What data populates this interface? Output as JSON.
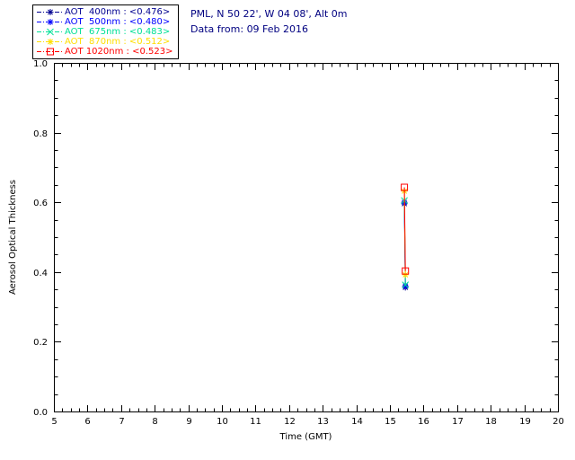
{
  "header": {
    "line1": "PML, N 50 22', W 04 08', Alt 0m",
    "line2": "Data from: 09 Feb 2016",
    "color": "#000080"
  },
  "legend": {
    "border_color": "#000000"
  },
  "chart_data": {
    "type": "line",
    "title": "",
    "xlabel": "Time (GMT)",
    "ylabel": "Aerosol Optical Thickness",
    "xlim": [
      5,
      20
    ],
    "ylim": [
      0.0,
      1.0
    ],
    "xticks": [
      5,
      6,
      7,
      8,
      9,
      10,
      11,
      12,
      13,
      14,
      15,
      16,
      17,
      18,
      19,
      20
    ],
    "xticklabels": [
      "5",
      "6",
      "7",
      "8",
      "9",
      "10",
      "11",
      "12",
      "13",
      "14",
      "15",
      "16",
      "17",
      "18",
      "19",
      "20"
    ],
    "yticks": [
      0.0,
      0.2,
      0.4,
      0.6,
      0.8,
      1.0
    ],
    "yticklabels": [
      "0.0",
      "0.2",
      "0.4",
      "0.6",
      "0.8",
      "1.0"
    ],
    "grid": false,
    "legend_position": "top-left",
    "axis_color": "#000000",
    "series": [
      {
        "name": "AOT 400nm",
        "label": "AOT  400nm : <0.476>",
        "mean": 0.476,
        "color": "#000090",
        "marker": "asterisk",
        "x": [
          15.43,
          15.46
        ],
        "y": [
          0.596,
          0.356
        ]
      },
      {
        "name": "AOT 500nm",
        "label": "AOT  500nm : <0.480>",
        "mean": 0.48,
        "color": "#0000FF",
        "marker": "asterisk",
        "x": [
          15.43,
          15.46
        ],
        "y": [
          0.6,
          0.36
        ]
      },
      {
        "name": "AOT 675nm",
        "label": "AOT  675nm : <0.483>",
        "mean": 0.483,
        "color": "#00E096",
        "marker": "x",
        "x": [
          15.43,
          15.46
        ],
        "y": [
          0.605,
          0.363
        ]
      },
      {
        "name": "AOT 870nm",
        "label": "AOT  870nm : <0.512>",
        "mean": 0.512,
        "color": "#FFDF00",
        "marker": "asterisk",
        "x": [
          15.43,
          15.46
        ],
        "y": [
          0.632,
          0.392
        ]
      },
      {
        "name": "AOT 1020nm",
        "label": "AOT 1020nm : <0.523>",
        "mean": 0.523,
        "color": "#FF0000",
        "marker": "square",
        "x": [
          15.43,
          15.46
        ],
        "y": [
          0.643,
          0.403
        ]
      }
    ]
  }
}
